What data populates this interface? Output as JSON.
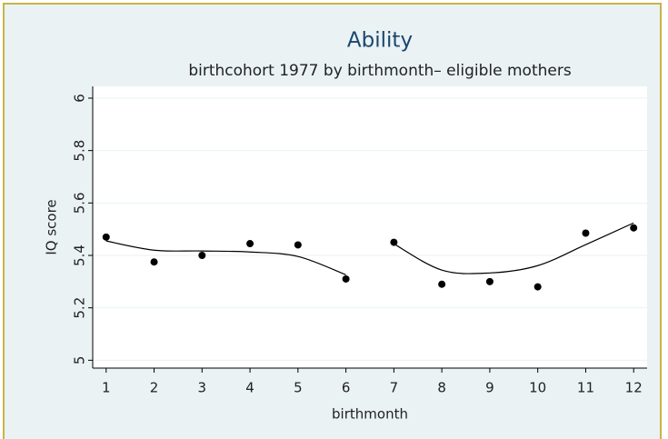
{
  "chart_data": {
    "type": "scatter",
    "title": "Ability",
    "subtitle": "birthcohort 1977 by birthmonth– eligible mothers",
    "x_label": "birthmonth",
    "y_label": "IQ score",
    "x": [
      1,
      2,
      3,
      4,
      5,
      6,
      7,
      8,
      9,
      10,
      11,
      12
    ],
    "values": [
      5.47,
      5.375,
      5.4,
      5.445,
      5.44,
      5.31,
      5.45,
      5.29,
      5.3,
      5.28,
      5.485,
      5.505
    ],
    "color": "#000000",
    "fit_segments": [
      {
        "x": [
          1,
          2,
          3,
          4,
          5,
          6
        ],
        "values": [
          5.455,
          5.42,
          5.417,
          5.413,
          5.396,
          5.326
        ]
      },
      {
        "x": [
          7,
          8,
          9,
          10,
          11,
          12
        ],
        "values": [
          5.444,
          5.344,
          5.333,
          5.361,
          5.441,
          5.524
        ]
      }
    ],
    "xlim": [
      0.72,
      12.28
    ],
    "xticks": [
      1,
      2,
      3,
      4,
      5,
      6,
      7,
      8,
      9,
      10,
      11,
      12
    ],
    "ylim": [
      4.97,
      6.045
    ],
    "yticks": [
      5,
      5.2,
      5.4,
      5.6,
      5.8,
      6
    ],
    "grid": true
  }
}
